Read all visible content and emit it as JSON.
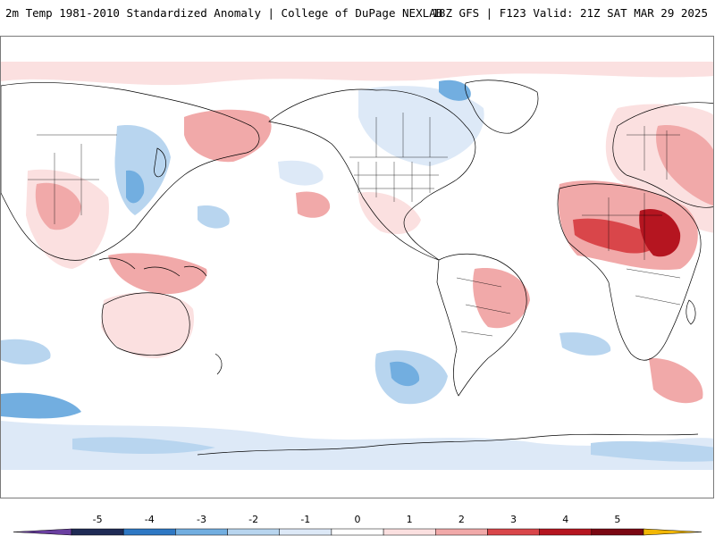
{
  "header": {
    "title": "2m Temp 1981-2010 Standardized Anomaly | College of DuPage NEXLAB",
    "run_info": "18Z GFS | F123 Valid: 21Z SAT MAR 29 2025"
  },
  "colorbar": {
    "ticks": [
      "-5",
      "-4",
      "-3",
      "-2",
      "-1",
      "0",
      "1",
      "2",
      "3",
      "4",
      "5"
    ],
    "bins": [
      {
        "color": "#1f2a55"
      },
      {
        "color": "#2e78c4"
      },
      {
        "color": "#72aee0"
      },
      {
        "color": "#b8d5ef"
      },
      {
        "color": "#dde9f7"
      },
      {
        "color": "#ffffff"
      },
      {
        "color": "#fbe0e0"
      },
      {
        "color": "#f1a9a9"
      },
      {
        "color": "#d9464a"
      },
      {
        "color": "#b51520"
      },
      {
        "color": "#7a0712"
      }
    ],
    "min_arrow_color": "#6a3fa0",
    "max_arrow_color": "#f2b705"
  },
  "map": {
    "projection": "equirectangular, centered on dateline",
    "land_outline_color": "#000000",
    "anomaly_colors": {
      "warm_light": "#fbe0e0",
      "warm_mid": "#f1a9a9",
      "warm_strong": "#d9464a",
      "warm_extreme": "#b51520",
      "cool_light": "#dde9f7",
      "cool_mid": "#b8d5ef",
      "cool_strong": "#72aee0",
      "cool_extreme": "#2e78c4"
    }
  }
}
